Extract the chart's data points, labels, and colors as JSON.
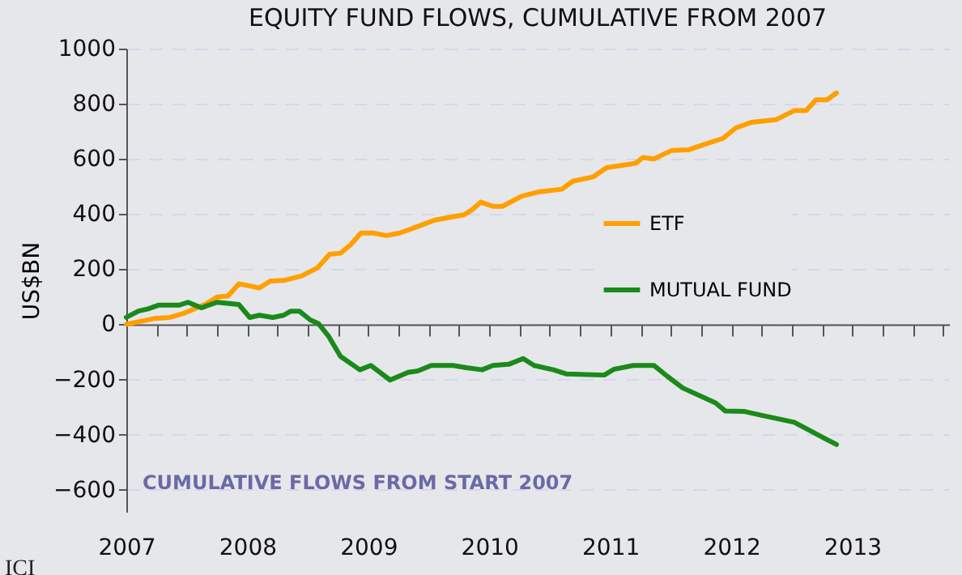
{
  "chart_data": {
    "type": "line",
    "title": "EQUITY FUND FLOWS, CUMULATIVE FROM 2007",
    "ylabel": "US$BN",
    "annotations": [
      "CUMULATIVE FLOWS FROM START 2007",
      "ICI"
    ],
    "xlim": [
      2007,
      2013.8
    ],
    "xticks": [
      {
        "value": 2007,
        "label": "2007"
      },
      {
        "value": 2007.25,
        "label": null
      },
      {
        "value": 2007.5,
        "label": null
      },
      {
        "value": 2007.75,
        "label": null
      },
      {
        "value": 2008,
        "label": "2008"
      },
      {
        "value": 2008.25,
        "label": null
      },
      {
        "value": 2008.5,
        "label": null
      },
      {
        "value": 2008.75,
        "label": null
      },
      {
        "value": 2009,
        "label": "2009"
      },
      {
        "value": 2009.25,
        "label": null
      },
      {
        "value": 2009.5,
        "label": null
      },
      {
        "value": 2009.75,
        "label": null
      },
      {
        "value": 2010,
        "label": "2010"
      },
      {
        "value": 2010.25,
        "label": null
      },
      {
        "value": 2010.5,
        "label": null
      },
      {
        "value": 2010.75,
        "label": null
      },
      {
        "value": 2011,
        "label": "2011"
      },
      {
        "value": 2011.25,
        "label": null
      },
      {
        "value": 2011.5,
        "label": null
      },
      {
        "value": 2011.75,
        "label": null
      },
      {
        "value": 2012,
        "label": "2012"
      },
      {
        "value": 2012.25,
        "label": null
      },
      {
        "value": 2012.5,
        "label": null
      },
      {
        "value": 2012.75,
        "label": null
      },
      {
        "value": 2013,
        "label": "2013"
      },
      {
        "value": 2013.25,
        "label": null
      },
      {
        "value": 2013.5,
        "label": null
      },
      {
        "value": 2013.75,
        "label": null
      }
    ],
    "ylim": [
      -680,
      1000
    ],
    "yticks": [
      -600,
      -400,
      -200,
      0,
      200,
      400,
      600,
      800,
      1000
    ],
    "grid": "y",
    "legend": "right",
    "marker": "none",
    "line_style": "solid",
    "series": [
      {
        "name": "ETF",
        "color": "#ff9f00",
        "x": [
          2007.0,
          2007.23,
          2007.36,
          2007.47,
          2007.66,
          2007.75,
          2007.84,
          2007.93,
          2008.1,
          2008.19,
          2008.3,
          2008.45,
          2008.58,
          2008.68,
          2008.77,
          2008.85,
          2008.94,
          2009.04,
          2009.15,
          2009.26,
          2009.41,
          2009.55,
          2009.79,
          2009.85,
          2009.93,
          2010.03,
          2010.11,
          2010.27,
          2010.42,
          2010.6,
          2010.69,
          2010.86,
          2010.97,
          2011.21,
          2011.27,
          2011.36,
          2011.51,
          2011.65,
          2011.78,
          2011.93,
          2012.04,
          2012.17,
          2012.37,
          2012.52,
          2012.62,
          2012.7,
          2012.79,
          2012.87
        ],
        "values": [
          0,
          21,
          25,
          39,
          74,
          99,
          103,
          147,
          132,
          157,
          159,
          176,
          205,
          254,
          258,
          287,
          331,
          331,
          322,
          331,
          355,
          378,
          397,
          413,
          443,
          428,
          428,
          465,
          481,
          490,
          519,
          535,
          568,
          584,
          605,
          600,
          631,
          633,
          653,
          674,
          713,
          733,
          742,
          775,
          775,
          814,
          814,
          839
        ]
      },
      {
        "name": "MUTUAL FUND",
        "color": "#1a8a1a",
        "x": [
          2007.0,
          2007.1,
          2007.18,
          2007.27,
          2007.44,
          2007.51,
          2007.62,
          2007.75,
          2007.93,
          2008.02,
          2008.1,
          2008.21,
          2008.3,
          2008.36,
          2008.43,
          2008.52,
          2008.59,
          2008.67,
          2008.77,
          2008.93,
          2009.02,
          2009.18,
          2009.33,
          2009.41,
          2009.52,
          2009.7,
          2009.81,
          2009.94,
          2010.03,
          2010.16,
          2010.28,
          2010.37,
          2010.53,
          2010.64,
          2010.95,
          2011.03,
          2011.19,
          2011.36,
          2011.47,
          2011.6,
          2011.87,
          2011.95,
          2012.11,
          2012.26,
          2012.52,
          2012.7,
          2012.87
        ],
        "values": [
          25,
          48,
          56,
          70,
          70,
          80,
          60,
          80,
          72,
          25,
          33,
          25,
          33,
          48,
          48,
          16,
          2,
          -42,
          -116,
          -165,
          -149,
          -202,
          -174,
          -169,
          -149,
          -149,
          -157,
          -165,
          -149,
          -145,
          -124,
          -149,
          -165,
          -180,
          -184,
          -163,
          -149,
          -149,
          -188,
          -231,
          -285,
          -314,
          -316,
          -331,
          -355,
          -397,
          -436
        ]
      }
    ]
  }
}
